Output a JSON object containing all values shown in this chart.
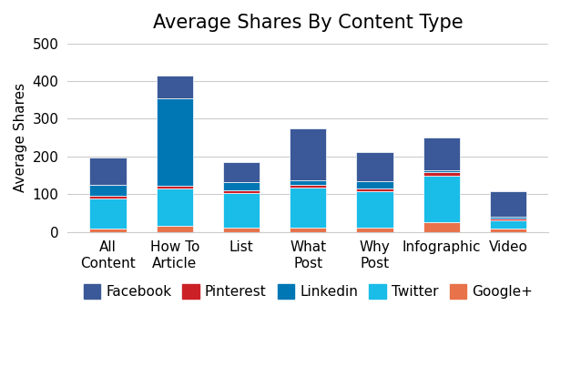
{
  "categories": [
    "All\nContent",
    "How To\nArticle",
    "List",
    "What\nPost",
    "Why\nPost",
    "Infographic",
    "Video"
  ],
  "series": {
    "Google+": [
      10,
      15,
      12,
      12,
      12,
      25,
      8
    ],
    "Twitter": [
      78,
      100,
      90,
      105,
      95,
      125,
      22
    ],
    "Pinterest": [
      8,
      8,
      8,
      8,
      8,
      8,
      5
    ],
    "Linkedin": [
      28,
      232,
      22,
      12,
      20,
      5,
      5
    ],
    "Facebook": [
      74,
      60,
      53,
      138,
      77,
      87,
      68
    ]
  },
  "colors": {
    "Google+": "#e8724a",
    "Twitter": "#1abce8",
    "Pinterest": "#cc2027",
    "Linkedin": "#0077b5",
    "Facebook": "#3b5998"
  },
  "legend_order": [
    "Facebook",
    "Pinterest",
    "Linkedin",
    "Twitter",
    "Google+"
  ],
  "title": "Average Shares By Content Type",
  "ylabel": "Average Shares",
  "ylim": [
    0,
    500
  ],
  "yticks": [
    0,
    100,
    200,
    300,
    400,
    500
  ],
  "title_fontsize": 15,
  "label_fontsize": 11,
  "tick_fontsize": 11,
  "legend_fontsize": 11,
  "bar_width": 0.55
}
